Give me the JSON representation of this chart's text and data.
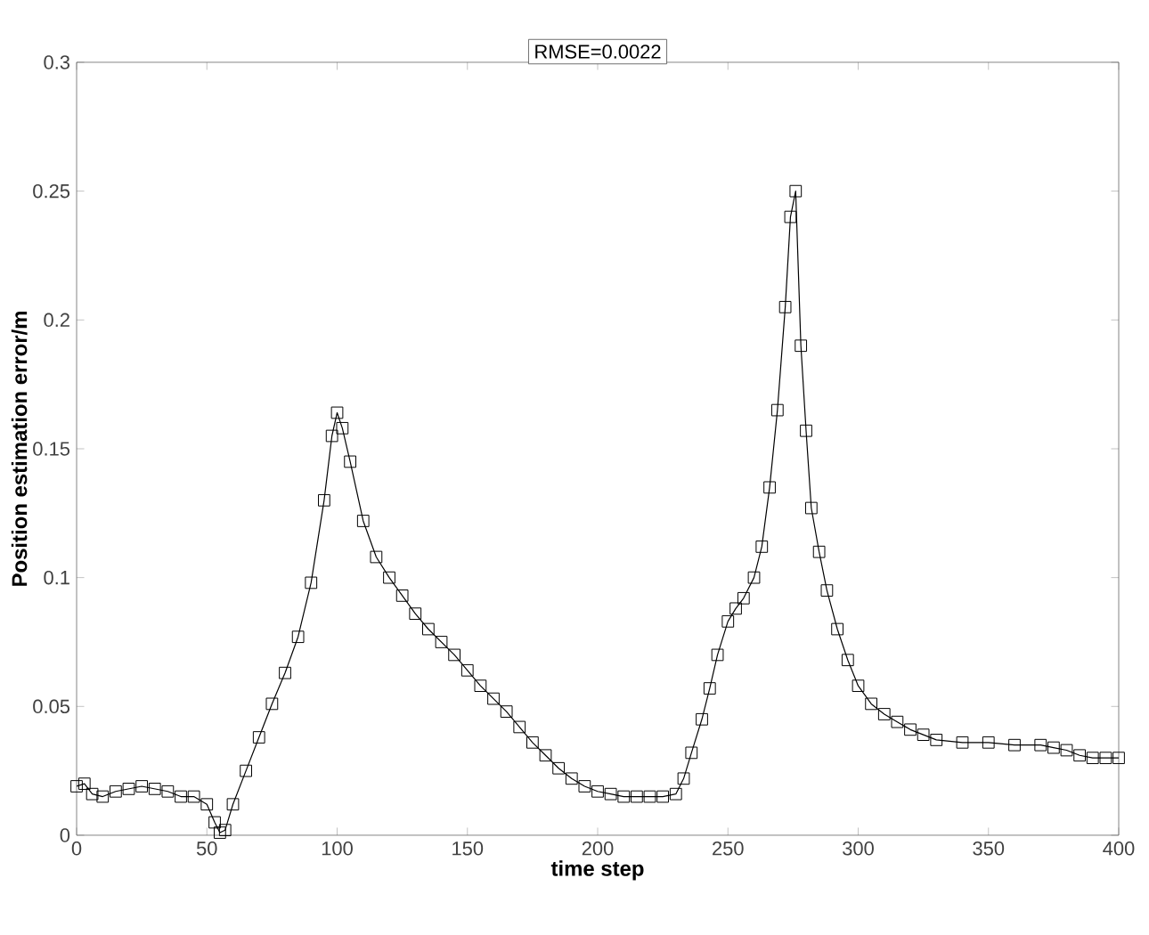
{
  "chart_data": {
    "type": "line",
    "title": "RMSE=0.0022",
    "xlabel": "time step",
    "ylabel": "Position estimation error/m",
    "xlim": [
      0,
      400
    ],
    "ylim": [
      0,
      0.3
    ],
    "xticks": [
      0,
      50,
      100,
      150,
      200,
      250,
      300,
      350,
      400
    ],
    "yticks": [
      0,
      0.05,
      0.1,
      0.15,
      0.2,
      0.25,
      0.3
    ],
    "marker": "square",
    "line_style": "solid",
    "series": [
      {
        "color": "#000000",
        "x": [
          0,
          3,
          6,
          10,
          15,
          20,
          25,
          30,
          35,
          40,
          45,
          50,
          53,
          55,
          57,
          60,
          65,
          70,
          75,
          80,
          85,
          90,
          95,
          98,
          100,
          102,
          105,
          110,
          115,
          120,
          125,
          130,
          135,
          140,
          145,
          150,
          155,
          160,
          165,
          170,
          175,
          180,
          185,
          190,
          195,
          200,
          205,
          210,
          215,
          220,
          225,
          230,
          233,
          236,
          240,
          243,
          246,
          250,
          253,
          256,
          260,
          263,
          266,
          269,
          272,
          274,
          276,
          278,
          280,
          282,
          285,
          288,
          292,
          296,
          300,
          305,
          310,
          315,
          320,
          325,
          330,
          340,
          350,
          360,
          370,
          375,
          380,
          385,
          390,
          395,
          400
        ],
        "values": [
          0.019,
          0.02,
          0.016,
          0.015,
          0.017,
          0.018,
          0.019,
          0.018,
          0.017,
          0.015,
          0.015,
          0.012,
          0.005,
          0.001,
          0.002,
          0.012,
          0.025,
          0.038,
          0.051,
          0.063,
          0.077,
          0.098,
          0.13,
          0.155,
          0.164,
          0.158,
          0.145,
          0.122,
          0.108,
          0.1,
          0.093,
          0.086,
          0.08,
          0.075,
          0.07,
          0.064,
          0.058,
          0.053,
          0.048,
          0.042,
          0.036,
          0.031,
          0.026,
          0.022,
          0.019,
          0.017,
          0.016,
          0.015,
          0.015,
          0.015,
          0.015,
          0.016,
          0.022,
          0.032,
          0.045,
          0.057,
          0.07,
          0.083,
          0.088,
          0.092,
          0.1,
          0.112,
          0.135,
          0.165,
          0.205,
          0.24,
          0.25,
          0.19,
          0.157,
          0.127,
          0.11,
          0.095,
          0.08,
          0.068,
          0.058,
          0.051,
          0.047,
          0.044,
          0.041,
          0.039,
          0.037,
          0.036,
          0.036,
          0.035,
          0.035,
          0.034,
          0.033,
          0.031,
          0.03,
          0.03,
          0.03
        ]
      }
    ]
  }
}
